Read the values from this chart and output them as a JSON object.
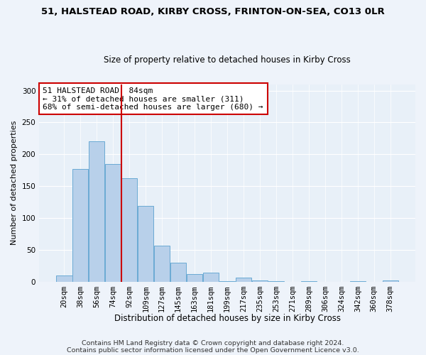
{
  "title1": "51, HALSTEAD ROAD, KIRBY CROSS, FRINTON-ON-SEA, CO13 0LR",
  "title2": "Size of property relative to detached houses in Kirby Cross",
  "xlabel": "Distribution of detached houses by size in Kirby Cross",
  "ylabel": "Number of detached properties",
  "categories": [
    "20sqm",
    "38sqm",
    "56sqm",
    "74sqm",
    "92sqm",
    "109sqm",
    "127sqm",
    "145sqm",
    "163sqm",
    "181sqm",
    "199sqm",
    "217sqm",
    "235sqm",
    "253sqm",
    "271sqm",
    "289sqm",
    "306sqm",
    "324sqm",
    "342sqm",
    "360sqm",
    "378sqm"
  ],
  "values": [
    10,
    177,
    220,
    185,
    163,
    119,
    57,
    30,
    12,
    14,
    1,
    7,
    2,
    1,
    0,
    1,
    0,
    0,
    1,
    0,
    2
  ],
  "bar_color": "#b8d0ea",
  "bar_edge_color": "#6aaad4",
  "annotation_text": "51 HALSTEAD ROAD: 84sqm\n← 31% of detached houses are smaller (311)\n68% of semi-detached houses are larger (680) →",
  "annotation_box_color": "#ffffff",
  "annotation_box_edge": "#cc0000",
  "vline_color": "#cc0000",
  "ylim": [
    0,
    310
  ],
  "yticks": [
    0,
    50,
    100,
    150,
    200,
    250,
    300
  ],
  "footnote1": "Contains HM Land Registry data © Crown copyright and database right 2024.",
  "footnote2": "Contains public sector information licensed under the Open Government Licence v3.0.",
  "bg_color": "#eef3fa",
  "plot_bg_color": "#e8f0f8"
}
